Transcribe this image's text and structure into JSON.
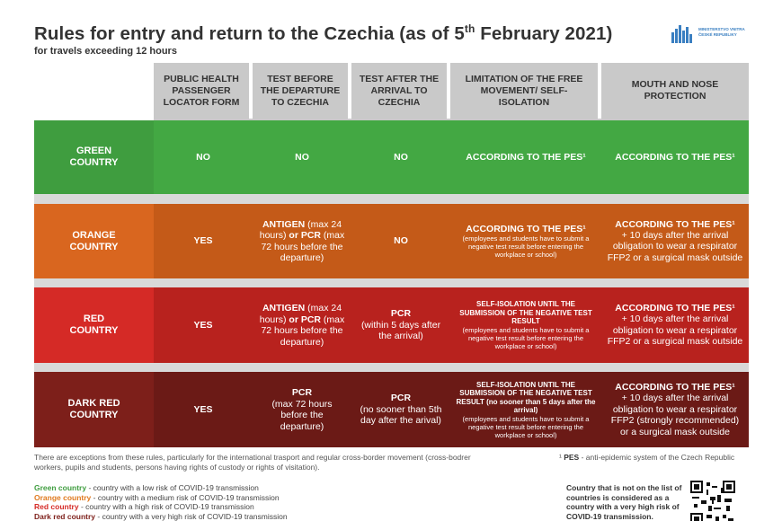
{
  "title": {
    "main": "Rules for entry and return to the Czechia (as of 5",
    "sup": "th",
    "tail": " February 2021)"
  },
  "subtitle": "for travels exceeding 12 hours",
  "logo": {
    "icon": "ministry-logo-icon",
    "line1": "MINISTERSTVO VNITRA",
    "line2": "ČESKÉ REPUBLIKY"
  },
  "headers": [
    "PUBLIC HEALTH PASSENGER LOCATOR FORM",
    "TEST BEFORE THE DEPARTURE TO CZECHIA",
    "TEST AFTER THE ARRIVAL TO CZECHIA",
    "LIMITATION OF THE FREE MOVEMENT/ SELF-ISOLATION",
    "MOUTH AND NOSE PROTECTION"
  ],
  "rows": [
    {
      "label": "GREEN COUNTRY",
      "colors": {
        "label": "#3f9d3f",
        "cells": "#43a843"
      },
      "plf": "NO",
      "test_before": "NO",
      "test_after": "NO",
      "limitation": "ACCORDING TO THE PES¹",
      "mask": "ACCORDING TO THE PES¹"
    },
    {
      "label": "ORANGE COUNTRY",
      "colors": {
        "label": "#d9661f",
        "cells": "#c45a18"
      },
      "plf": "YES",
      "test_before": {
        "a_bold": "ANTIGEN",
        "a_rest": " (max 24 hours) ",
        "or": "or",
        "b_bold": "PCR",
        "b_rest": " (max 72 hours before the departure)"
      },
      "test_after": "NO",
      "limitation": {
        "head": "ACCORDING TO THE PES¹",
        "note": "(employees and students have to submit a negative test result before entering the workplace or school)"
      },
      "mask": {
        "head": "ACCORDING TO THE PES¹",
        "rest": "+ 10 days after the arrival obligation to wear a respirator FFP2 or a surgical mask outside"
      }
    },
    {
      "label": "RED COUNTRY",
      "colors": {
        "label": "#d52a26",
        "cells": "#b8221e"
      },
      "plf": "YES",
      "test_before": {
        "a_bold": "ANTIGEN",
        "a_rest": " (max 24 hours) ",
        "or": "or",
        "b_bold": "PCR",
        "b_rest": " (max 72 hours before the departure)"
      },
      "test_after": {
        "head": "PCR",
        "rest": "(within 5 days after the arrival)"
      },
      "limitation": {
        "head": "SELF-ISOLATION UNTIL THE SUBMISSION OF THE NEGATIVE TEST RESULT",
        "note": "(employees and students have to submit a negative test result before entering the workplace or school)"
      },
      "mask": {
        "head": "ACCORDING TO THE PES¹",
        "rest": "+ 10 days after the arrival obligation to wear a respirator FFP2 or a surgical mask outside"
      }
    },
    {
      "label": "DARK RED COUNTRY",
      "colors": {
        "label": "#7d1f1a",
        "cells": "#6b1a16"
      },
      "plf": "YES",
      "test_before": {
        "head": "PCR",
        "rest": "(max 72 hours before the departure)"
      },
      "test_after": {
        "head": "PCR",
        "rest": "(no sooner than 5th day after the arival)"
      },
      "limitation": {
        "head": "SELF-ISOLATION UNTIL THE SUBMISSION OF THE NEGATIVE TEST RESULT (no sooner than 5 days after the arrival)",
        "note": "(employees and students have to submit a negative test result before entering the workplace or school)"
      },
      "mask": {
        "head": "ACCORDING TO THE PES¹",
        "rest": "+ 10 days after the arrival obligation to wear a respirator FFP2 (strongly recommended) or a surgical mask outside"
      }
    }
  ],
  "footnote_exceptions": "There are exceptions from these rules, particularly for the international trasport and regular cross-border movement (cross-bodrer workers, pupils and students, persons having rights of custody or rights of visitation).",
  "footnote_pes": {
    "mark": "¹",
    "term": "PES",
    "def": " - anti-epidemic system of the Czech Republic"
  },
  "legend": [
    {
      "name": "Green country",
      "desc": " - country with a low risk of COVID-19 transmission",
      "color": "#3f9d3f"
    },
    {
      "name": "Orange country",
      "desc": " - country with a medium risk of COVID-19 transmission",
      "color": "#e07a1f"
    },
    {
      "name": "Red country",
      "desc": " - country with a high risk of COVID-19 transmission",
      "color": "#d52a26"
    },
    {
      "name": "Dark red country",
      "desc": " - country with a very high risk of COVID-19 transmission",
      "color": "#7d1f1a"
    }
  ],
  "qr_note": "Country that is not on the list of countries is considered as a country with a very high risk of COVID-19 transmission.",
  "qr_icon": "qr-code-icon",
  "header_bg": "#c9c9c9"
}
